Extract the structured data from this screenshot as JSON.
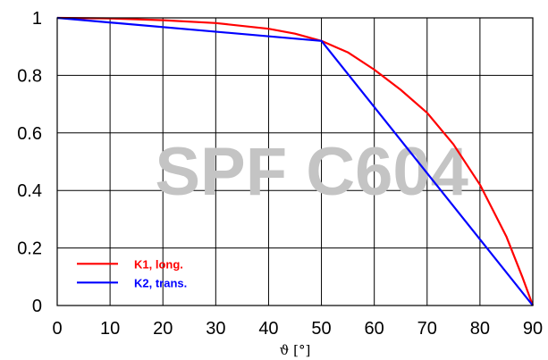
{
  "chart_data": {
    "type": "line",
    "xlabel": "ϑ [°]",
    "ylabel": "",
    "xlim": [
      0,
      90
    ],
    "ylim": [
      0,
      1
    ],
    "xticks": [
      "0",
      "10",
      "20",
      "30",
      "40",
      "50",
      "60",
      "70",
      "80",
      "90"
    ],
    "yticks": [
      "0",
      "0.2",
      "0.4",
      "0.6",
      "0.8",
      "1"
    ],
    "grid": true,
    "legend_position": "bottom-left",
    "watermark": "SPF C604",
    "series": [
      {
        "name": "K1, long.",
        "color": "#ff0000",
        "x": [
          0,
          10,
          20,
          30,
          40,
          45,
          50,
          55,
          60,
          65,
          70,
          75,
          80,
          85,
          88,
          90
        ],
        "y": [
          1.0,
          0.998,
          0.992,
          0.982,
          0.962,
          0.945,
          0.92,
          0.88,
          0.82,
          0.75,
          0.67,
          0.56,
          0.42,
          0.24,
          0.1,
          0.0
        ]
      },
      {
        "name": "K2, trans.",
        "color": "#0000ff",
        "x": [
          0,
          50,
          90
        ],
        "y": [
          1.0,
          0.92,
          0.0
        ]
      }
    ]
  }
}
